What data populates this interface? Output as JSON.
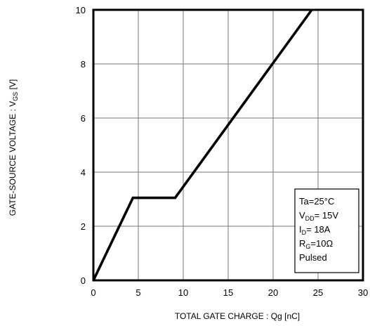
{
  "chart_data": {
    "type": "line",
    "xlabel": "TOTAL GATE CHARGE : Qg  [nC]",
    "ylabel_main": "GATE-SOURCE VOLTAGE : V",
    "ylabel_sub": "GS",
    "ylabel_unit": " [V]",
    "xlim": [
      0,
      30
    ],
    "ylim": [
      0,
      10
    ],
    "x_ticks": [
      0,
      5,
      10,
      15,
      20,
      25,
      30
    ],
    "y_ticks": [
      0,
      2,
      4,
      6,
      8,
      10
    ],
    "grid": true,
    "series": [
      {
        "x": [
          0,
          4.4,
          9.1,
          24.3
        ],
        "y": [
          0,
          3.05,
          3.05,
          10
        ]
      }
    ],
    "legend_placement": "bottom-right",
    "conditions": [
      {
        "main": "Ta=25°C",
        "sub": "",
        "rest": ""
      },
      {
        "main": "V",
        "sub": "DD",
        "rest": "= 15V"
      },
      {
        "main": "I",
        "sub": "D",
        "rest": "= 18A"
      },
      {
        "main": "R",
        "sub": "G",
        "rest": "=10Ω"
      },
      {
        "main": "Pulsed",
        "sub": "",
        "rest": ""
      }
    ]
  }
}
